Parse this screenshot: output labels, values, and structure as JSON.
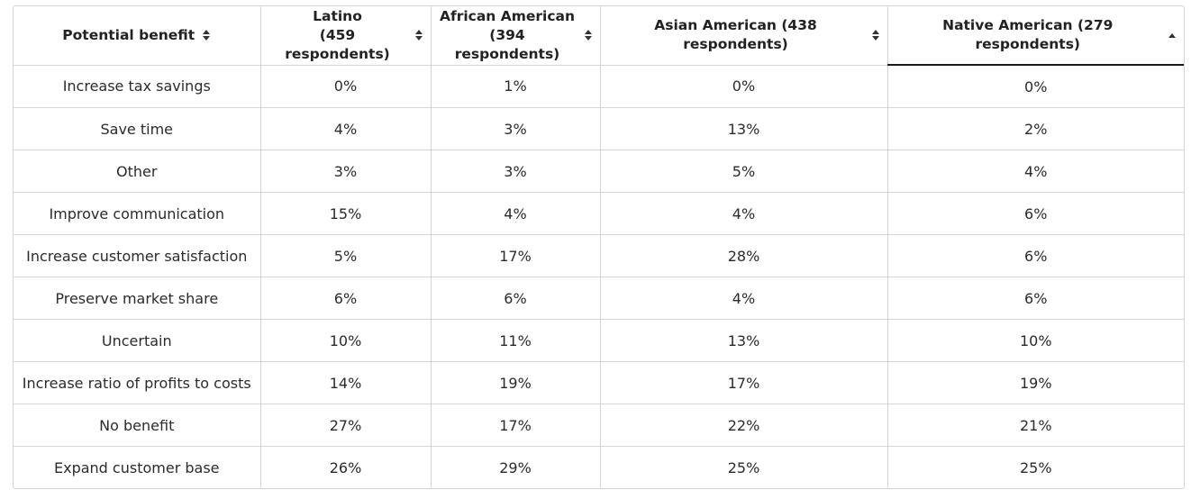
{
  "table": {
    "columns": [
      {
        "label_lines": [
          "Potential benefit"
        ],
        "sort": "none"
      },
      {
        "label_lines": [
          "Latino",
          "(459 respondents)"
        ],
        "sort": "none"
      },
      {
        "label_lines": [
          "African American",
          "(394 respondents)"
        ],
        "sort": "none"
      },
      {
        "label_lines": [
          "Asian American (438 respondents)"
        ],
        "sort": "none"
      },
      {
        "label_lines": [
          "Native American (279 respondents)"
        ],
        "sort": "ascending"
      }
    ],
    "rows": [
      [
        "Increase tax savings",
        "0%",
        "1%",
        "0%",
        "0%"
      ],
      [
        "Save time",
        "4%",
        "3%",
        "13%",
        "2%"
      ],
      [
        "Other",
        "3%",
        "3%",
        "5%",
        "4%"
      ],
      [
        "Improve communication",
        "15%",
        "4%",
        "4%",
        "6%"
      ],
      [
        "Increase customer satisfaction",
        "5%",
        "17%",
        "28%",
        "6%"
      ],
      [
        "Preserve market share",
        "6%",
        "6%",
        "4%",
        "6%"
      ],
      [
        "Uncertain",
        "10%",
        "11%",
        "13%",
        "10%"
      ],
      [
        "Increase ratio of profits to costs",
        "14%",
        "19%",
        "17%",
        "19%"
      ],
      [
        "No benefit",
        "27%",
        "17%",
        "22%",
        "21%"
      ],
      [
        "Expand customer base",
        "26%",
        "29%",
        "25%",
        "25%"
      ]
    ]
  },
  "icons": {
    "sortable": "sort-both-icon",
    "ascending": "sort-ascending-icon"
  },
  "colors": {
    "border": "#d5d5d5",
    "active_sort_underline": "#1a1a1a",
    "text": "#222222"
  }
}
